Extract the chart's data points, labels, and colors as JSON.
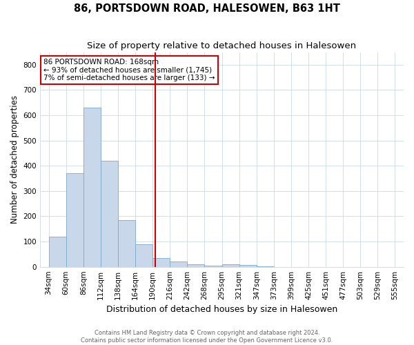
{
  "title": "86, PORTSDOWN ROAD, HALESOWEN, B63 1HT",
  "subtitle": "Size of property relative to detached houses in Halesowen",
  "xlabel": "Distribution of detached houses by size in Halesowen",
  "ylabel": "Number of detached properties",
  "bin_labels": [
    "34sqm",
    "60sqm",
    "86sqm",
    "112sqm",
    "138sqm",
    "164sqm",
    "190sqm",
    "216sqm",
    "242sqm",
    "268sqm",
    "295sqm",
    "321sqm",
    "347sqm",
    "373sqm",
    "399sqm",
    "425sqm",
    "451sqm",
    "477sqm",
    "503sqm",
    "529sqm",
    "555sqm"
  ],
  "bar_heights": [
    120,
    370,
    630,
    420,
    185,
    90,
    35,
    20,
    10,
    5,
    10,
    8,
    2,
    0,
    0,
    0,
    0,
    0,
    0,
    0,
    0
  ],
  "bar_color": "#c8d8ea",
  "bar_edge_color": "#7aaac8",
  "property_line_color": "#cc0000",
  "property_line_bin_index": 5,
  "annotation_text": "86 PORTSDOWN ROAD: 168sqm\n← 93% of detached houses are smaller (1,745)\n7% of semi-detached houses are larger (133) →",
  "annotation_box_color": "#cc0000",
  "ylim": [
    0,
    850
  ],
  "yticks": [
    0,
    100,
    200,
    300,
    400,
    500,
    600,
    700,
    800
  ],
  "footnote1": "Contains HM Land Registry data © Crown copyright and database right 2024.",
  "footnote2": "Contains public sector information licensed under the Open Government Licence v3.0.",
  "title_fontsize": 10.5,
  "subtitle_fontsize": 9.5,
  "xlabel_fontsize": 9,
  "ylabel_fontsize": 8.5,
  "tick_fontsize": 7.5,
  "annotation_fontsize": 7.5,
  "footnote_fontsize": 6,
  "bg_color": "#ffffff",
  "grid_color": "#cdd8e3"
}
